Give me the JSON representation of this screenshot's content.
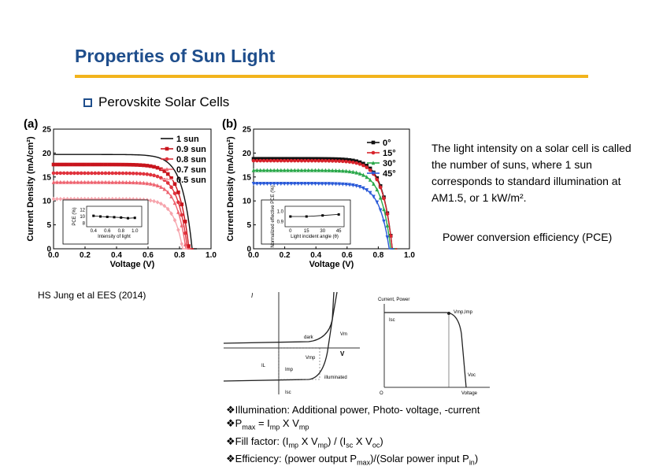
{
  "slide": {
    "title": "Properties of Sun Light",
    "bullet": "Perovskite Solar Cells",
    "paragraph": "The light intensity on a solar cell is called the number of suns, where 1 sun corresponds to standard illumination at AM1.5, or 1 kW/m².",
    "pce_line": "Power conversion efficiency (PCE)",
    "citation": "HS Jung et al EES (2014)",
    "formulas": {
      "line1": "❖Illumination: Additional power, Photo- voltage, -current",
      "line2_a": "❖P",
      "line2_sub1": "max",
      "line2_b": " = I",
      "line2_sub2": "mp",
      "line2_c": " X V",
      "line2_sub3": "mp",
      "line3_a": "❖Fill factor: (I",
      "line3_sub1": "mp",
      "line3_b": " X V",
      "line3_sub2": "mp",
      "line3_c": ") / (I",
      "line3_sub3": "sc",
      "line3_d": " X V",
      "line3_sub4": "oc",
      "line3_e": ")",
      "line4_a": "❖Efficiency: (power output  P",
      "line4_sub1": "max",
      "line4_b": ")/(Solar power input  P",
      "line4_sub2": "in",
      "line4_c": ")"
    },
    "colors": {
      "title": "#1f4e8c",
      "rule": "#f2b41c"
    }
  },
  "chart_data": [
    {
      "type": "line",
      "panel_label": "(a)",
      "xlabel": "Voltage (V)",
      "ylabel": "Current Density (mA/cm²)",
      "xlim": [
        0.0,
        1.0
      ],
      "ylim": [
        0,
        25
      ],
      "xticks": [
        "0.0",
        "0.2",
        "0.4",
        "0.6",
        "0.8",
        "1.0"
      ],
      "yticks": [
        "0",
        "5",
        "10",
        "15",
        "20",
        "25"
      ],
      "legend_position": "top-right",
      "series": [
        {
          "name": "1 sun",
          "color": "#111111",
          "marker": "none",
          "jsc": 19.7,
          "voc": 0.88
        },
        {
          "name": "0.9 sun",
          "color": "#c8141c",
          "marker": "square",
          "jsc": 17.6,
          "voc": 0.86
        },
        {
          "name": "0.8 sun",
          "color": "#e0323c",
          "marker": "circle",
          "jsc": 15.8,
          "voc": 0.85
        },
        {
          "name": "0.7 sun",
          "color": "#ee6470",
          "marker": "triangle",
          "jsc": 13.9,
          "voc": 0.84
        },
        {
          "name": "0.5 sun",
          "color": "#f6a4ac",
          "marker": "diamond",
          "jsc": 10.4,
          "voc": 0.82
        }
      ],
      "inset": {
        "xlabel": "Intensity of light",
        "ylabel": "PCE (%)",
        "xticks": [
          "0.4",
          "0.6",
          "0.8",
          "1.0"
        ],
        "yticks": [
          "8",
          "10",
          "12"
        ],
        "xlim": [
          0.3,
          1.1
        ],
        "ylim": [
          7,
          13
        ],
        "points": [
          [
            0.4,
            10.2
          ],
          [
            0.5,
            10.0
          ],
          [
            0.6,
            9.9
          ],
          [
            0.7,
            9.8
          ],
          [
            0.8,
            9.7
          ],
          [
            0.9,
            9.5
          ],
          [
            1.0,
            9.6
          ]
        ]
      }
    },
    {
      "type": "line",
      "panel_label": "(b)",
      "xlabel": "Voltage (V)",
      "ylabel": "Current Density (mA/cm²)",
      "xlim": [
        0.0,
        1.0
      ],
      "ylim": [
        0,
        25
      ],
      "xticks": [
        "0.0",
        "0.2",
        "0.4",
        "0.6",
        "0.8",
        "1.0"
      ],
      "yticks": [
        "0",
        "5",
        "10",
        "15",
        "20",
        "25"
      ],
      "legend_position": "top-right",
      "series": [
        {
          "name": "0°",
          "color": "#111111",
          "marker": "square",
          "jsc": 18.8,
          "voc": 0.89
        },
        {
          "name": "15°",
          "color": "#d8242c",
          "marker": "circle",
          "jsc": 18.4,
          "voc": 0.89
        },
        {
          "name": "30°",
          "color": "#2aa84a",
          "marker": "triangle",
          "jsc": 16.4,
          "voc": 0.88
        },
        {
          "name": "45°",
          "color": "#2a5ad8",
          "marker": "triangle-down",
          "jsc": 13.6,
          "voc": 0.87
        }
      ],
      "inset": {
        "xlabel": "Light incident angle (θ)",
        "ylabel": "Normalized effective PCE (%)",
        "xticks": [
          "0",
          "15",
          "30",
          "45"
        ],
        "yticks": [
          "0.9",
          "1.0"
        ],
        "xlim": [
          -5,
          50
        ],
        "ylim": [
          0.85,
          1.05
        ],
        "points": [
          [
            0,
            0.95
          ],
          [
            15,
            0.95
          ],
          [
            30,
            0.96
          ],
          [
            45,
            0.97
          ]
        ]
      }
    },
    {
      "type": "line",
      "panel_label": "",
      "xlabel": "V",
      "ylabel": "I",
      "labels": {
        "dark": "dark",
        "illuminated": "illuminated",
        "vm": "Vm",
        "vmp": "Vmp",
        "imp": "Imp",
        "il": "IL",
        "isc": "Isc"
      },
      "series": [
        {
          "name": "dark",
          "color": "#222222"
        },
        {
          "name": "illuminated",
          "color": "#222222"
        }
      ]
    },
    {
      "type": "line",
      "panel_label": "",
      "ylabel": "Current, Power",
      "xlabel": "Voltage",
      "labels": {
        "isc": "Isc",
        "vmp_imp": "Vmp,Imp",
        "voc": "Voc",
        "origin": "O"
      },
      "series": [
        {
          "name": "",
          "color": "#222222"
        }
      ]
    }
  ]
}
